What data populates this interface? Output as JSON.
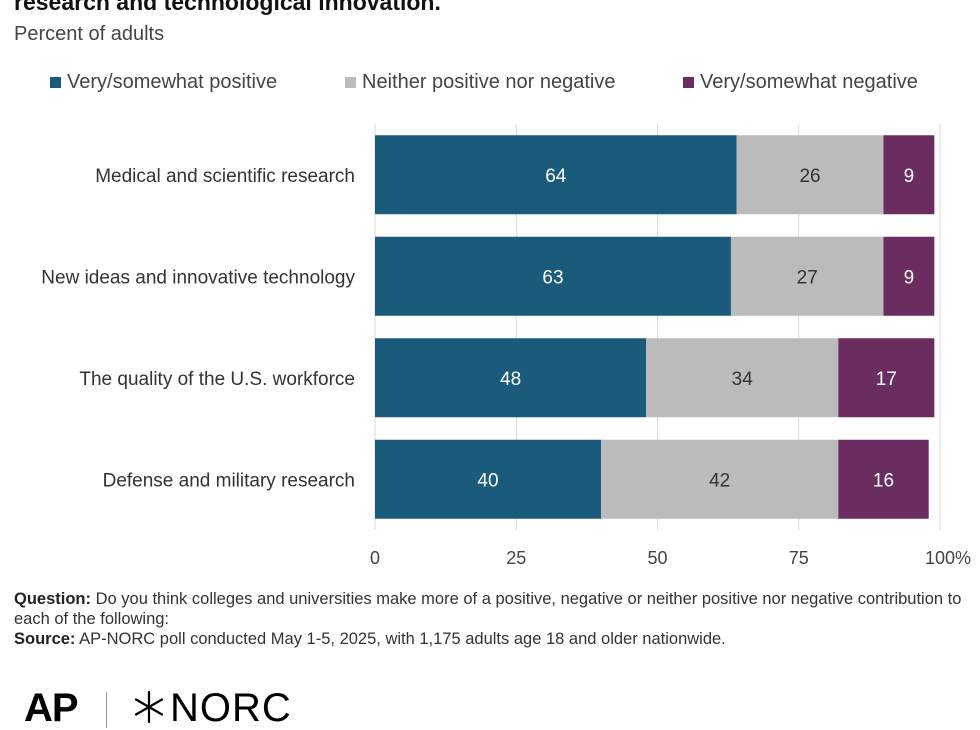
{
  "header": {
    "title": "research and technological innovation.",
    "subtitle": "Percent of adults"
  },
  "chart_data": {
    "type": "bar",
    "orientation": "horizontal",
    "stacked": true,
    "categories": [
      "Medical and scientific research",
      "New ideas and innovative technology",
      "The quality of the U.S. workforce",
      "Defense and military research"
    ],
    "series": [
      {
        "name": "Very/somewhat positive",
        "color": "#1a5b7b",
        "label_color": "#ffffff",
        "values": [
          64,
          63,
          48,
          40
        ]
      },
      {
        "name": "Neither positive nor negative",
        "color": "#bbbbbb",
        "label_color": "#333333",
        "values": [
          26,
          27,
          34,
          42
        ]
      },
      {
        "name": "Very/somewhat negative",
        "color": "#6b2d5f",
        "label_color": "#ffffff",
        "values": [
          9,
          9,
          17,
          16
        ]
      }
    ],
    "xlim": [
      0,
      100
    ],
    "xticks": [
      "0",
      "25",
      "50",
      "75",
      "100%"
    ],
    "xtick_values": [
      0,
      25,
      50,
      75,
      100
    ],
    "grid": true,
    "legend_position": "top"
  },
  "footer": {
    "question_label": "Question:",
    "question_text": "Do you think colleges and universities make more of a  positive, negative or neither positive nor negative contribution to each of the following:",
    "source_label": "Source:",
    "source_text": "AP-NORC poll conducted May 1-5, 2025, with 1,175 adults age 18 and older nationwide."
  },
  "logos": {
    "ap": "AP",
    "norc": "NORC"
  }
}
